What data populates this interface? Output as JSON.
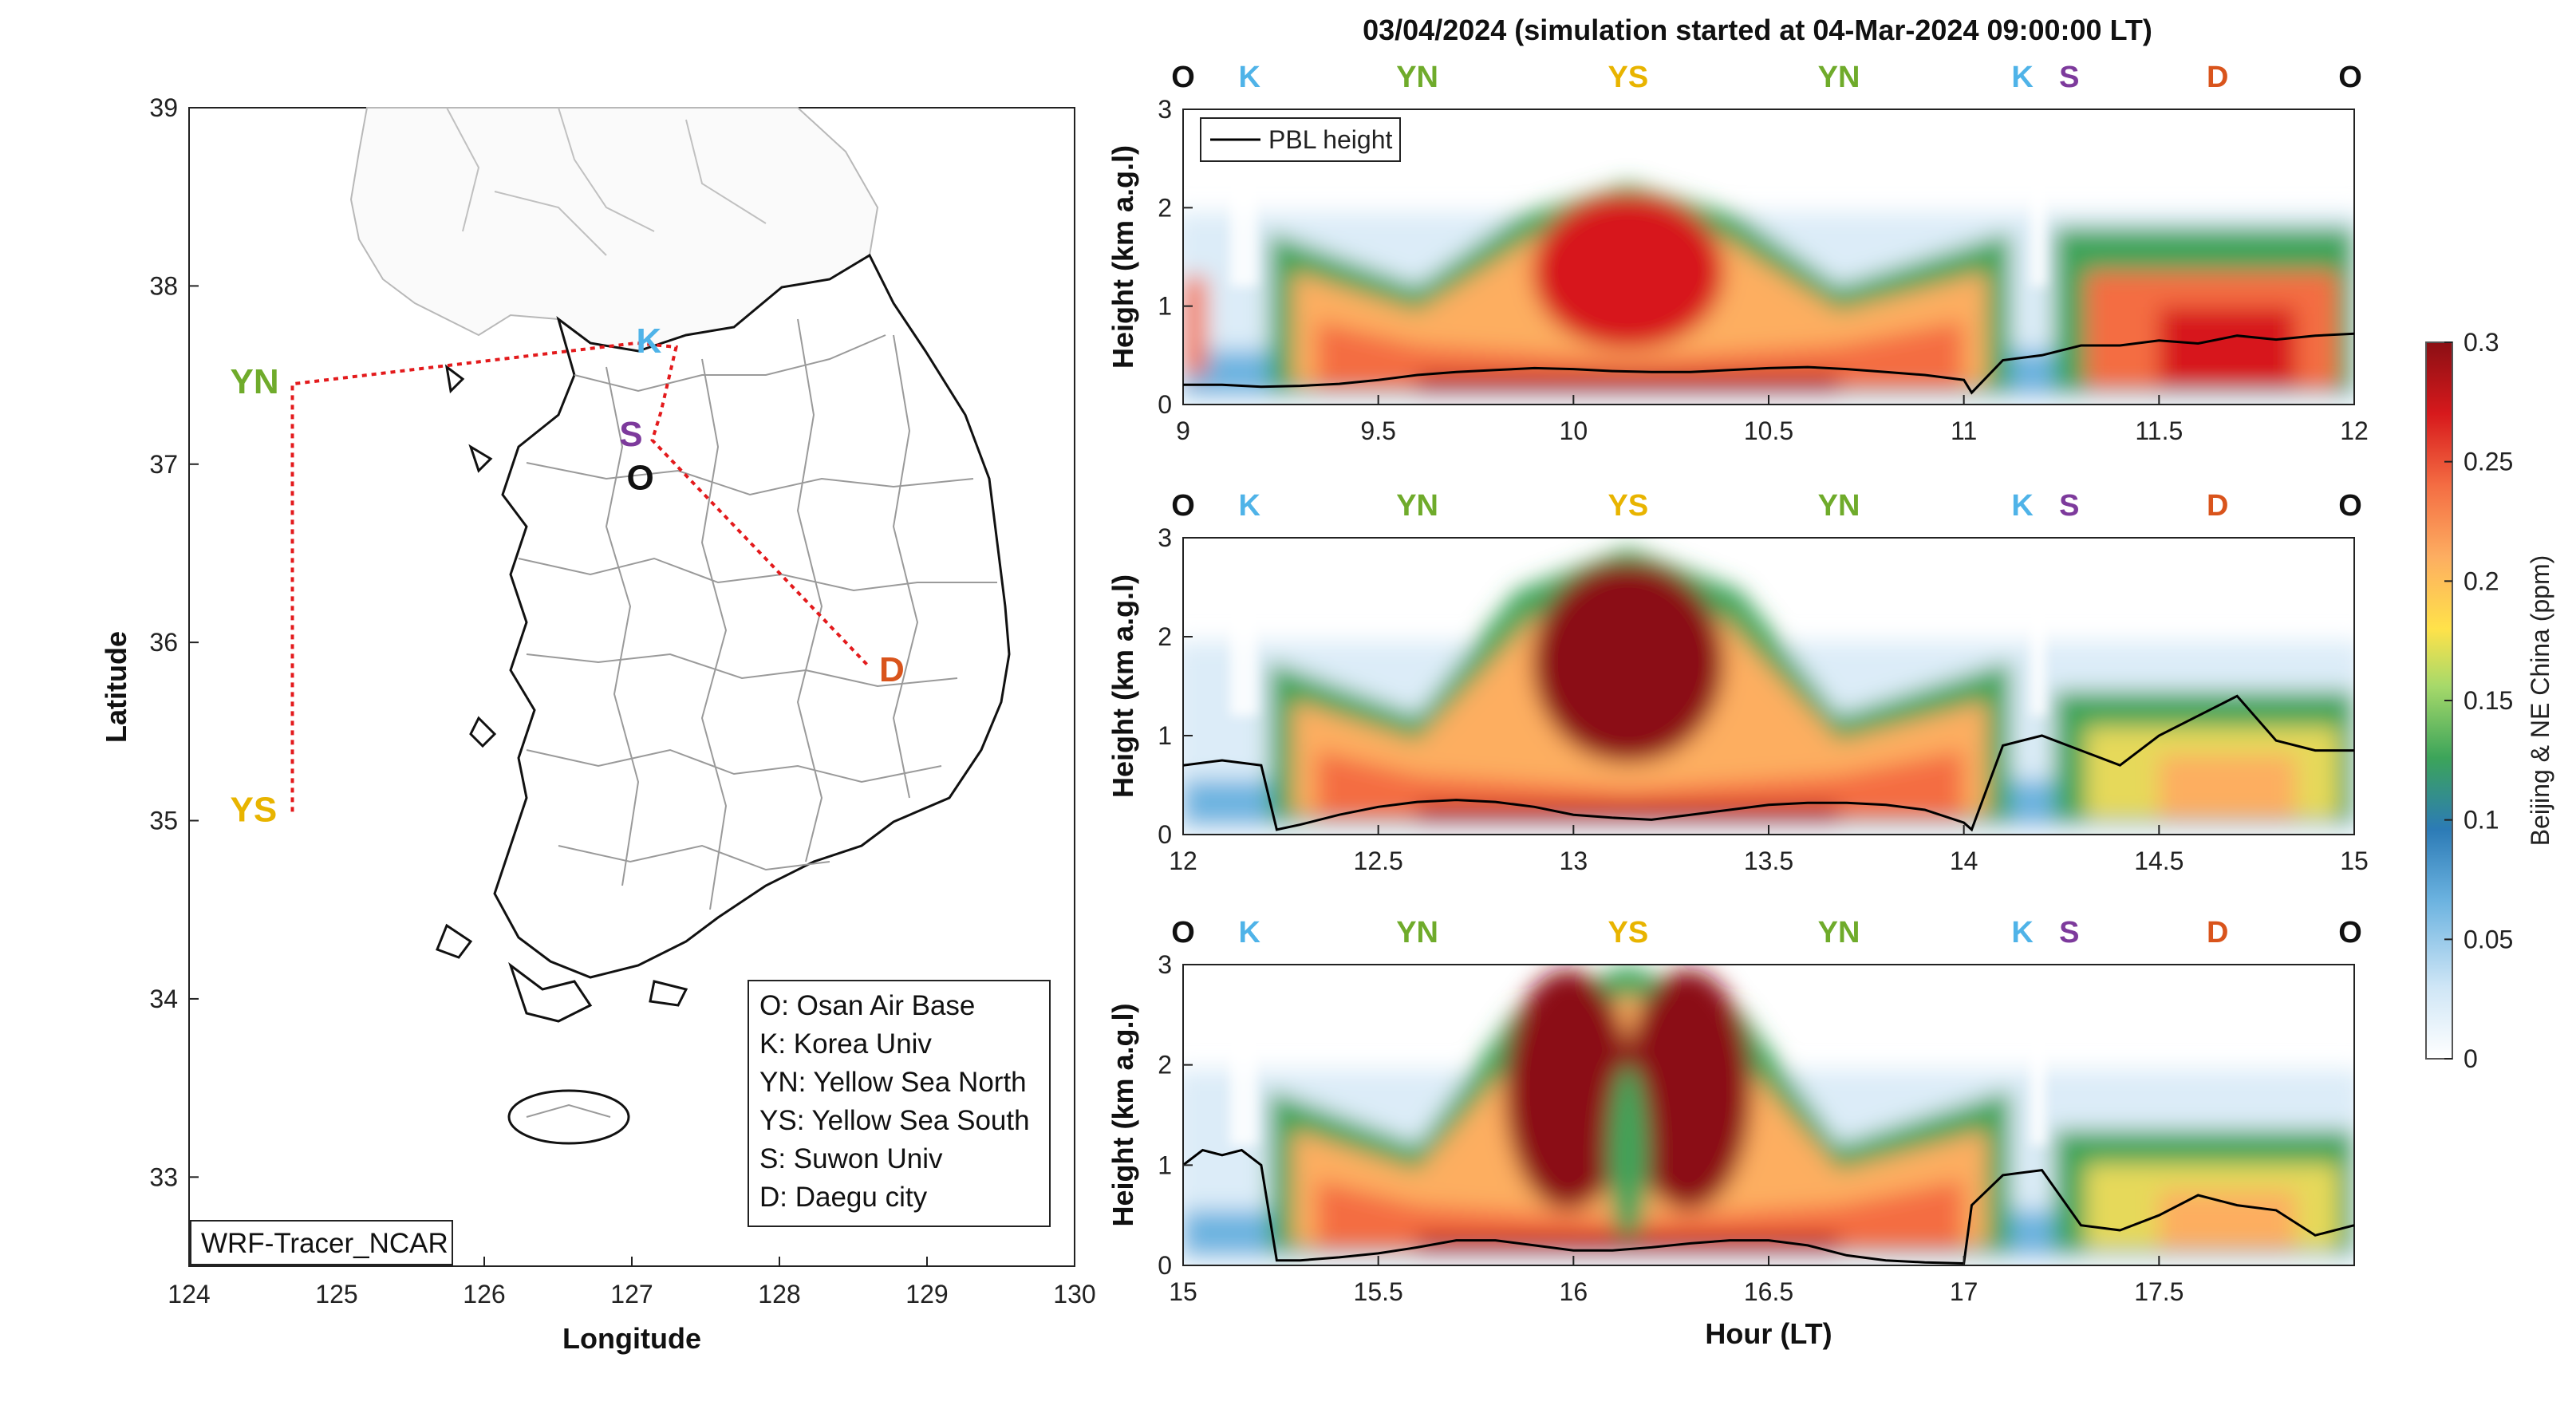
{
  "figure_title": "03/04/2024 (simulation started at 04-Mar-2024 09:00:00 LT)",
  "colors": {
    "O": "#111111",
    "K": "#4fb3e8",
    "YN": "#6fab2b",
    "YS": "#e8b400",
    "S": "#7d3a9c",
    "D": "#d9541c",
    "route": "#e31a1c",
    "pbl": "#000000"
  },
  "map": {
    "xlabel": "Longitude",
    "ylabel": "Latitude",
    "xticks": [
      "124",
      "125",
      "126",
      "127",
      "128",
      "129",
      "130"
    ],
    "yticks": [
      "33",
      "34",
      "35",
      "36",
      "37",
      "38",
      "39"
    ],
    "xlim": [
      124,
      130
    ],
    "ylim": [
      32.5,
      39
    ],
    "model_label": "WRF-Tracer_NCAR",
    "sites": [
      {
        "code": "YN",
        "lon": 124.7,
        "lat": 37.45
      },
      {
        "code": "YS",
        "lon": 124.7,
        "lat": 35.05
      },
      {
        "code": "K",
        "lon": 127.03,
        "lat": 37.59
      },
      {
        "code": "S",
        "lon": 126.98,
        "lat": 37.29
      },
      {
        "code": "O",
        "lon": 127.03,
        "lat": 37.09
      },
      {
        "code": "D",
        "lon": 128.6,
        "lat": 35.87
      }
    ],
    "legend": [
      "O: Osan Air Base",
      "K: Korea Univ",
      "YN: Yellow Sea North",
      "YS: Yellow Sea South",
      "S: Suwon Univ",
      "D: Daegu city"
    ]
  },
  "chart_data": [
    {
      "type": "heatmap",
      "x": [
        9,
        12
      ],
      "xticks": [
        "9",
        "9.5",
        "10",
        "10.5",
        "11",
        "11.5",
        "12"
      ],
      "ylim": [
        0,
        3
      ],
      "yticks": [
        "0",
        "1",
        "2",
        "3"
      ],
      "ylabel": "Height (km a.g.l)",
      "series_label": "PBL height",
      "route_labels": [
        "O",
        "K",
        "YN",
        "YS",
        "YN",
        "K",
        "S",
        "D",
        "O"
      ],
      "route_times": [
        9.0,
        9.17,
        9.6,
        10.14,
        10.68,
        11.15,
        11.27,
        11.65,
        12.0
      ],
      "pbl_x": [
        9.0,
        9.1,
        9.2,
        9.3,
        9.4,
        9.5,
        9.6,
        9.7,
        9.8,
        9.9,
        10.0,
        10.1,
        10.2,
        10.3,
        10.4,
        10.5,
        10.6,
        10.7,
        10.8,
        10.9,
        11.0,
        11.02,
        11.1,
        11.2,
        11.3,
        11.4,
        11.5,
        11.6,
        11.7,
        11.8,
        11.9,
        12.0
      ],
      "pbl_y": [
        0.2,
        0.2,
        0.18,
        0.19,
        0.21,
        0.25,
        0.3,
        0.33,
        0.35,
        0.37,
        0.36,
        0.34,
        0.33,
        0.33,
        0.35,
        0.37,
        0.38,
        0.36,
        0.33,
        0.3,
        0.25,
        0.12,
        0.45,
        0.5,
        0.6,
        0.6,
        0.65,
        0.62,
        0.7,
        0.66,
        0.7,
        0.72
      ]
    },
    {
      "type": "heatmap",
      "x": [
        12,
        15
      ],
      "xticks": [
        "12",
        "12.5",
        "13",
        "13.5",
        "14",
        "14.5",
        "15"
      ],
      "ylim": [
        0,
        3
      ],
      "yticks": [
        "0",
        "1",
        "2",
        "3"
      ],
      "ylabel": "Height (km a.g.l)",
      "route_labels": [
        "O",
        "K",
        "YN",
        "YS",
        "YN",
        "K",
        "S",
        "D",
        "O"
      ],
      "route_times": [
        12.0,
        12.17,
        12.6,
        13.14,
        13.68,
        14.15,
        14.27,
        14.65,
        15.0
      ],
      "pbl_x": [
        12.0,
        12.1,
        12.2,
        12.24,
        12.3,
        12.4,
        12.5,
        12.6,
        12.7,
        12.8,
        12.9,
        13.0,
        13.1,
        13.2,
        13.3,
        13.4,
        13.5,
        13.6,
        13.7,
        13.8,
        13.9,
        14.0,
        14.02,
        14.1,
        14.2,
        14.3,
        14.4,
        14.5,
        14.6,
        14.7,
        14.8,
        14.9,
        15.0
      ],
      "pbl_y": [
        0.7,
        0.75,
        0.7,
        0.05,
        0.1,
        0.2,
        0.28,
        0.33,
        0.35,
        0.33,
        0.28,
        0.2,
        0.17,
        0.15,
        0.2,
        0.25,
        0.3,
        0.32,
        0.32,
        0.3,
        0.25,
        0.12,
        0.05,
        0.9,
        1.0,
        0.85,
        0.7,
        1.0,
        1.2,
        1.4,
        0.95,
        0.85,
        0.85
      ]
    },
    {
      "type": "heatmap",
      "x": [
        15,
        18
      ],
      "xticks": [
        "15",
        "15.5",
        "16",
        "16.5",
        "17",
        "17.5"
      ],
      "xlabel": "Hour (LT)",
      "ylim": [
        0,
        3
      ],
      "yticks": [
        "0",
        "1",
        "2",
        "3"
      ],
      "ylabel": "Height (km a.g.l)",
      "route_labels": [
        "O",
        "K",
        "YN",
        "YS",
        "YN",
        "K",
        "S",
        "D",
        "O"
      ],
      "route_times": [
        15.0,
        15.17,
        15.6,
        16.14,
        16.68,
        17.15,
        17.27,
        17.65,
        18.0
      ],
      "pbl_x": [
        15.0,
        15.05,
        15.1,
        15.15,
        15.2,
        15.24,
        15.3,
        15.4,
        15.5,
        15.6,
        15.7,
        15.8,
        15.9,
        16.0,
        16.1,
        16.2,
        16.3,
        16.4,
        16.5,
        16.6,
        16.7,
        16.8,
        16.9,
        17.0,
        17.02,
        17.1,
        17.2,
        17.3,
        17.4,
        17.5,
        17.6,
        17.7,
        17.8,
        17.9,
        18.0
      ],
      "pbl_y": [
        1.0,
        1.15,
        1.1,
        1.15,
        1.0,
        0.05,
        0.05,
        0.08,
        0.12,
        0.18,
        0.25,
        0.25,
        0.2,
        0.15,
        0.15,
        0.18,
        0.22,
        0.25,
        0.25,
        0.2,
        0.1,
        0.05,
        0.03,
        0.02,
        0.6,
        0.9,
        0.95,
        0.4,
        0.35,
        0.5,
        0.7,
        0.6,
        0.55,
        0.3,
        0.4
      ]
    }
  ],
  "colorbar": {
    "label": "Beijing & NE China (ppm)",
    "min": 0,
    "max": 0.3,
    "ticks": [
      "0",
      "0.05",
      "0.1",
      "0.15",
      "0.2",
      "0.25",
      "0.3"
    ],
    "colormap": [
      "#ffffff",
      "#cfe6f6",
      "#6cb3e0",
      "#2c7bb6",
      "#3ca45a",
      "#a6d96a",
      "#ffe24a",
      "#fdae61",
      "#f46d43",
      "#d7191c",
      "#8b0f14"
    ]
  }
}
